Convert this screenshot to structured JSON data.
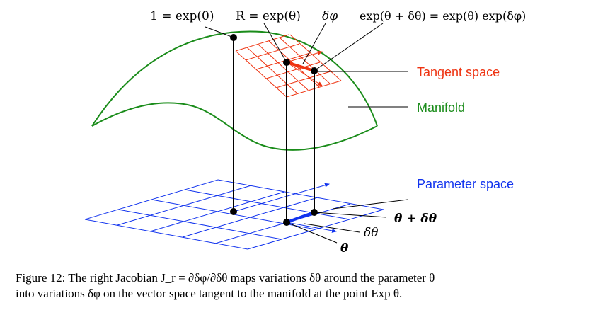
{
  "labels": {
    "identity": "1 = exp(0)",
    "rotation": "R = exp(θ)",
    "delta_phi": "δφ",
    "exp_sum": "exp(θ + δθ) = exp(θ) exp(δφ)",
    "tangent_space": "Tangent space",
    "manifold": "Manifold",
    "parameter_space": "Parameter space",
    "theta_plus": "θ + δθ",
    "delta_theta": "δθ",
    "theta": "θ"
  },
  "caption": {
    "line1": "Figure 12: The right Jacobian J_r = ∂δφ/∂δθ maps variations δθ around the parameter θ",
    "line2": "into variations δφ on the vector space tangent to the manifold at the point Exp θ."
  },
  "colors": {
    "manifold": "#1a8c1a",
    "tangent": "#ee3311",
    "parameter": "#1133ee",
    "ink": "#000000"
  }
}
